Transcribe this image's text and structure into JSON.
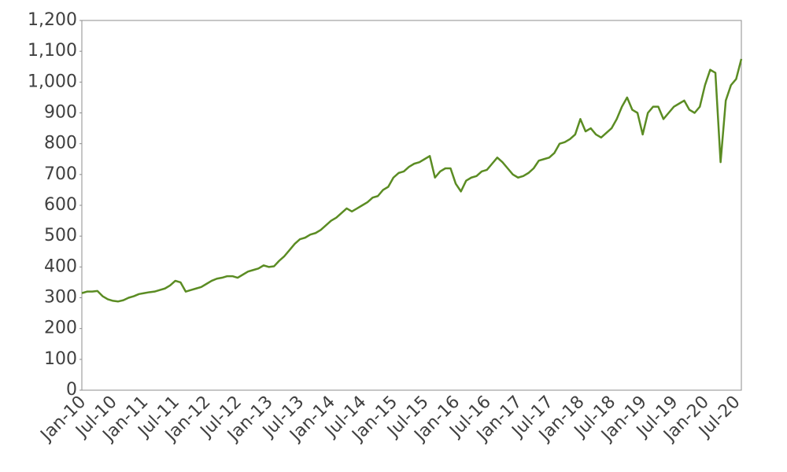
{
  "chart_data": {
    "type": "line",
    "color": "#5b8c23",
    "categories": [
      "Jan-10",
      null,
      null,
      null,
      null,
      null,
      "Jul-10",
      null,
      null,
      null,
      null,
      null,
      "Jan-11",
      null,
      null,
      null,
      null,
      null,
      "Jul-11",
      null,
      null,
      null,
      null,
      null,
      "Jan-12",
      null,
      null,
      null,
      null,
      null,
      "Jul-12",
      null,
      null,
      null,
      null,
      null,
      "Jan-13",
      null,
      null,
      null,
      null,
      null,
      "Jul-13",
      null,
      null,
      null,
      null,
      null,
      "Jan-14",
      null,
      null,
      null,
      null,
      null,
      "Jul-14",
      null,
      null,
      null,
      null,
      null,
      "Jan-15",
      null,
      null,
      null,
      null,
      null,
      "Jul-15",
      null,
      null,
      null,
      null,
      null,
      "Jan-16",
      null,
      null,
      null,
      null,
      null,
      "Jul-16",
      null,
      null,
      null,
      null,
      null,
      "Jan-17",
      null,
      null,
      null,
      null,
      null,
      "Jul-17",
      null,
      null,
      null,
      null,
      null,
      "Jan-18",
      null,
      null,
      null,
      null,
      null,
      "Jul-18",
      null,
      null,
      null,
      null,
      null,
      "Jan-19",
      null,
      null,
      null,
      null,
      null,
      "Jul-19",
      null,
      null,
      null,
      null,
      null,
      "Jan-20",
      null,
      null,
      null,
      null,
      null,
      "Jul-20",
      null
    ],
    "values": [
      315,
      320,
      320,
      322,
      305,
      295,
      290,
      288,
      292,
      300,
      305,
      312,
      315,
      318,
      320,
      325,
      330,
      340,
      355,
      350,
      320,
      325,
      330,
      335,
      345,
      355,
      362,
      365,
      370,
      370,
      365,
      375,
      385,
      390,
      395,
      405,
      400,
      402,
      420,
      435,
      455,
      475,
      490,
      495,
      505,
      510,
      520,
      535,
      550,
      560,
      575,
      590,
      580,
      590,
      600,
      610,
      625,
      630,
      650,
      660,
      690,
      705,
      710,
      725,
      735,
      740,
      750,
      760,
      690,
      710,
      720,
      720,
      670,
      645,
      680,
      690,
      695,
      710,
      715,
      735,
      755,
      740,
      720,
      700,
      690,
      695,
      705,
      720,
      745,
      750,
      755,
      770,
      800,
      805,
      815,
      830,
      880,
      840,
      850,
      830,
      820,
      835,
      850,
      880,
      920,
      950,
      910,
      900,
      830,
      900,
      920,
      920,
      880,
      900,
      920,
      930,
      940,
      910,
      900,
      920,
      990,
      1040,
      1030,
      740,
      940,
      990,
      1010,
      1075
    ],
    "ylim": [
      0,
      1200
    ],
    "yticks": [
      0,
      100,
      200,
      300,
      400,
      500,
      600,
      700,
      800,
      900,
      {
        "value": 1000,
        "label": "1,000"
      },
      {
        "value": 1100,
        "label": "1,100"
      },
      {
        "value": 1200,
        "label": "1,200"
      }
    ]
  }
}
